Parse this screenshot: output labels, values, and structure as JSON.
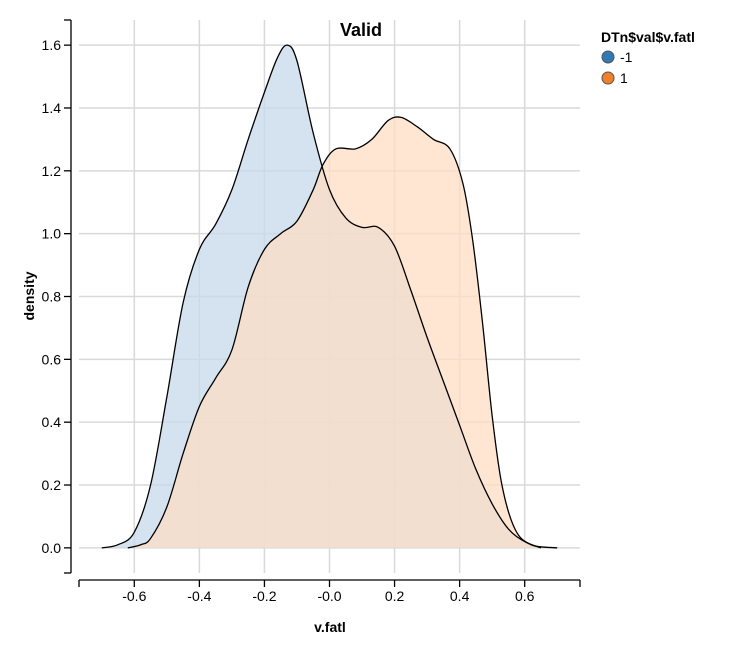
{
  "chart_data": {
    "type": "area",
    "title": "Valid",
    "xlabel": "v.fatl",
    "ylabel": "density",
    "xlim": [
      -0.77,
      0.77
    ],
    "ylim": [
      -0.08,
      1.68
    ],
    "x_ticks": [
      "-0.6",
      "-0.4",
      "-0.2",
      "-0.0",
      "0.2",
      "0.4",
      "0.6"
    ],
    "x_tick_values": [
      -0.6,
      -0.4,
      -0.2,
      0.0,
      0.2,
      0.4,
      0.6
    ],
    "y_ticks": [
      "0.0",
      "0.2",
      "0.4",
      "0.6",
      "0.8",
      "1.0",
      "1.2",
      "1.4",
      "1.6"
    ],
    "y_tick_values": [
      0.0,
      0.2,
      0.4,
      0.6,
      0.8,
      1.0,
      1.2,
      1.4,
      1.6
    ],
    "grid": true,
    "legend": {
      "title": "DTn$val$v.fatl",
      "placement": "top-right",
      "entries": [
        {
          "label": "-1",
          "color": "#2f79b5"
        },
        {
          "label": "1",
          "color": "#f0812a"
        }
      ]
    },
    "series": [
      {
        "name": "-1",
        "fill": "#c5d9ea",
        "points": [
          [
            -0.7,
            0.0
          ],
          [
            -0.65,
            0.01
          ],
          [
            -0.6,
            0.05
          ],
          [
            -0.55,
            0.2
          ],
          [
            -0.5,
            0.48
          ],
          [
            -0.45,
            0.78
          ],
          [
            -0.4,
            0.95
          ],
          [
            -0.35,
            1.03
          ],
          [
            -0.3,
            1.14
          ],
          [
            -0.25,
            1.3
          ],
          [
            -0.2,
            1.45
          ],
          [
            -0.16,
            1.56
          ],
          [
            -0.13,
            1.6
          ],
          [
            -0.1,
            1.55
          ],
          [
            -0.05,
            1.32
          ],
          [
            0.0,
            1.14
          ],
          [
            0.05,
            1.05
          ],
          [
            0.1,
            1.02
          ],
          [
            0.15,
            1.02
          ],
          [
            0.2,
            0.96
          ],
          [
            0.25,
            0.82
          ],
          [
            0.3,
            0.67
          ],
          [
            0.35,
            0.53
          ],
          [
            0.4,
            0.39
          ],
          [
            0.45,
            0.25
          ],
          [
            0.5,
            0.14
          ],
          [
            0.55,
            0.06
          ],
          [
            0.6,
            0.02
          ],
          [
            0.65,
            0.0
          ]
        ]
      },
      {
        "name": "1",
        "fill": "#fdddc4",
        "points": [
          [
            -0.62,
            0.0
          ],
          [
            -0.58,
            0.01
          ],
          [
            -0.55,
            0.03
          ],
          [
            -0.5,
            0.13
          ],
          [
            -0.45,
            0.3
          ],
          [
            -0.4,
            0.45
          ],
          [
            -0.35,
            0.54
          ],
          [
            -0.3,
            0.63
          ],
          [
            -0.25,
            0.83
          ],
          [
            -0.2,
            0.95
          ],
          [
            -0.15,
            1.0
          ],
          [
            -0.1,
            1.04
          ],
          [
            -0.05,
            1.14
          ],
          [
            -0.02,
            1.22
          ],
          [
            0.02,
            1.27
          ],
          [
            0.08,
            1.27
          ],
          [
            0.13,
            1.3
          ],
          [
            0.18,
            1.36
          ],
          [
            0.22,
            1.37
          ],
          [
            0.27,
            1.34
          ],
          [
            0.32,
            1.3
          ],
          [
            0.37,
            1.27
          ],
          [
            0.41,
            1.16
          ],
          [
            0.44,
            0.98
          ],
          [
            0.47,
            0.72
          ],
          [
            0.5,
            0.42
          ],
          [
            0.53,
            0.2
          ],
          [
            0.57,
            0.06
          ],
          [
            0.62,
            0.01
          ],
          [
            0.7,
            0.0
          ]
        ]
      }
    ]
  }
}
